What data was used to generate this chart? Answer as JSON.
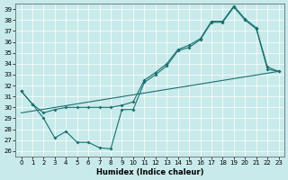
{
  "xlabel": "Humidex (Indice chaleur)",
  "xlim": [
    -0.5,
    23.5
  ],
  "ylim": [
    25.5,
    39.5
  ],
  "yticks": [
    26,
    27,
    28,
    29,
    30,
    31,
    32,
    33,
    34,
    35,
    36,
    37,
    38,
    39
  ],
  "xticks": [
    0,
    1,
    2,
    3,
    4,
    5,
    6,
    7,
    8,
    9,
    10,
    11,
    12,
    13,
    14,
    15,
    16,
    17,
    18,
    19,
    20,
    21,
    22,
    23
  ],
  "bg_color": "#c8eaea",
  "line_color": "#1a7070",
  "grid_color": "#ffffff",
  "line_jagged": {
    "x": [
      0,
      1,
      2,
      3,
      4,
      5,
      6,
      7,
      8,
      9,
      10,
      11,
      12,
      13,
      14,
      15,
      16,
      17,
      18,
      19,
      20,
      21,
      22,
      23
    ],
    "y": [
      31.5,
      30.3,
      29.0,
      27.2,
      27.8,
      26.8,
      26.8,
      26.3,
      26.2,
      29.8,
      29.8,
      32.3,
      33.0,
      33.8,
      35.2,
      35.5,
      36.2,
      37.8,
      37.8,
      39.2,
      38.0,
      37.2,
      33.5,
      33.3
    ]
  },
  "line_smooth": {
    "x": [
      0,
      1,
      2,
      3,
      4,
      5,
      6,
      7,
      8,
      9,
      10,
      11,
      12,
      13,
      14,
      15,
      16,
      17,
      18,
      19,
      20,
      21,
      22,
      23
    ],
    "y": [
      31.5,
      30.3,
      29.5,
      29.8,
      30.0,
      30.0,
      30.0,
      30.0,
      30.0,
      30.2,
      30.5,
      32.5,
      33.2,
      34.0,
      35.3,
      35.7,
      36.3,
      37.9,
      37.9,
      39.3,
      38.1,
      37.3,
      33.7,
      33.3
    ]
  },
  "line_linear": {
    "x": [
      0,
      23
    ],
    "y": [
      29.5,
      33.3
    ]
  }
}
